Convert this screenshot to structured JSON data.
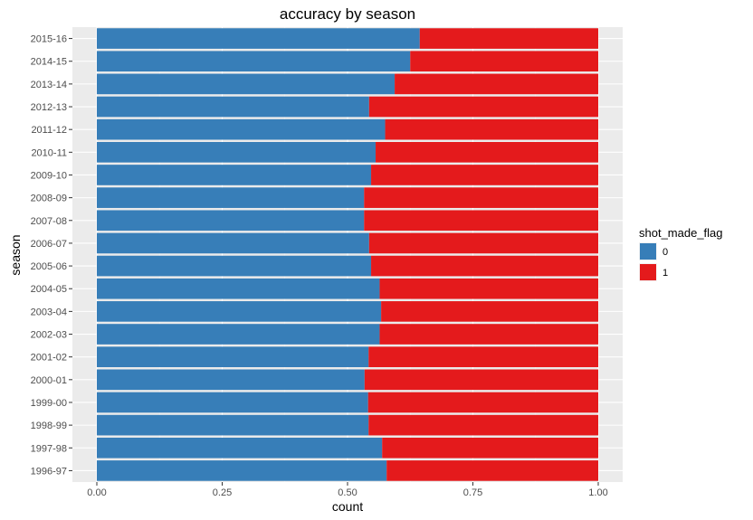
{
  "chart_data": {
    "type": "bar",
    "orientation": "horizontal",
    "stacked": "proportional",
    "title": "accuracy by season",
    "xlabel": "count",
    "ylabel": "season",
    "xlim": [
      0,
      1
    ],
    "xticks": [
      "0.00",
      "0.25",
      "0.50",
      "0.75",
      "1.00"
    ],
    "grid": true,
    "legend_position": "right",
    "legend_title": "shot_made_flag",
    "categories": [
      "1996-97",
      "1997-98",
      "1998-99",
      "1999-00",
      "2000-01",
      "2001-02",
      "2002-03",
      "2003-04",
      "2004-05",
      "2005-06",
      "2006-07",
      "2007-08",
      "2008-09",
      "2009-10",
      "2010-11",
      "2011-12",
      "2012-13",
      "2013-14",
      "2014-15",
      "2015-16"
    ],
    "series": [
      {
        "name": "0",
        "color": "#377eb8",
        "values": [
          0.578,
          0.569,
          0.542,
          0.541,
          0.534,
          0.542,
          0.564,
          0.567,
          0.564,
          0.547,
          0.543,
          0.533,
          0.533,
          0.547,
          0.556,
          0.575,
          0.543,
          0.594,
          0.625,
          0.644
        ]
      },
      {
        "name": "1",
        "color": "#e41a1c",
        "values": [
          0.422,
          0.431,
          0.458,
          0.459,
          0.466,
          0.458,
          0.436,
          0.433,
          0.436,
          0.453,
          0.457,
          0.467,
          0.467,
          0.453,
          0.444,
          0.425,
          0.457,
          0.406,
          0.375,
          0.356
        ]
      }
    ]
  }
}
